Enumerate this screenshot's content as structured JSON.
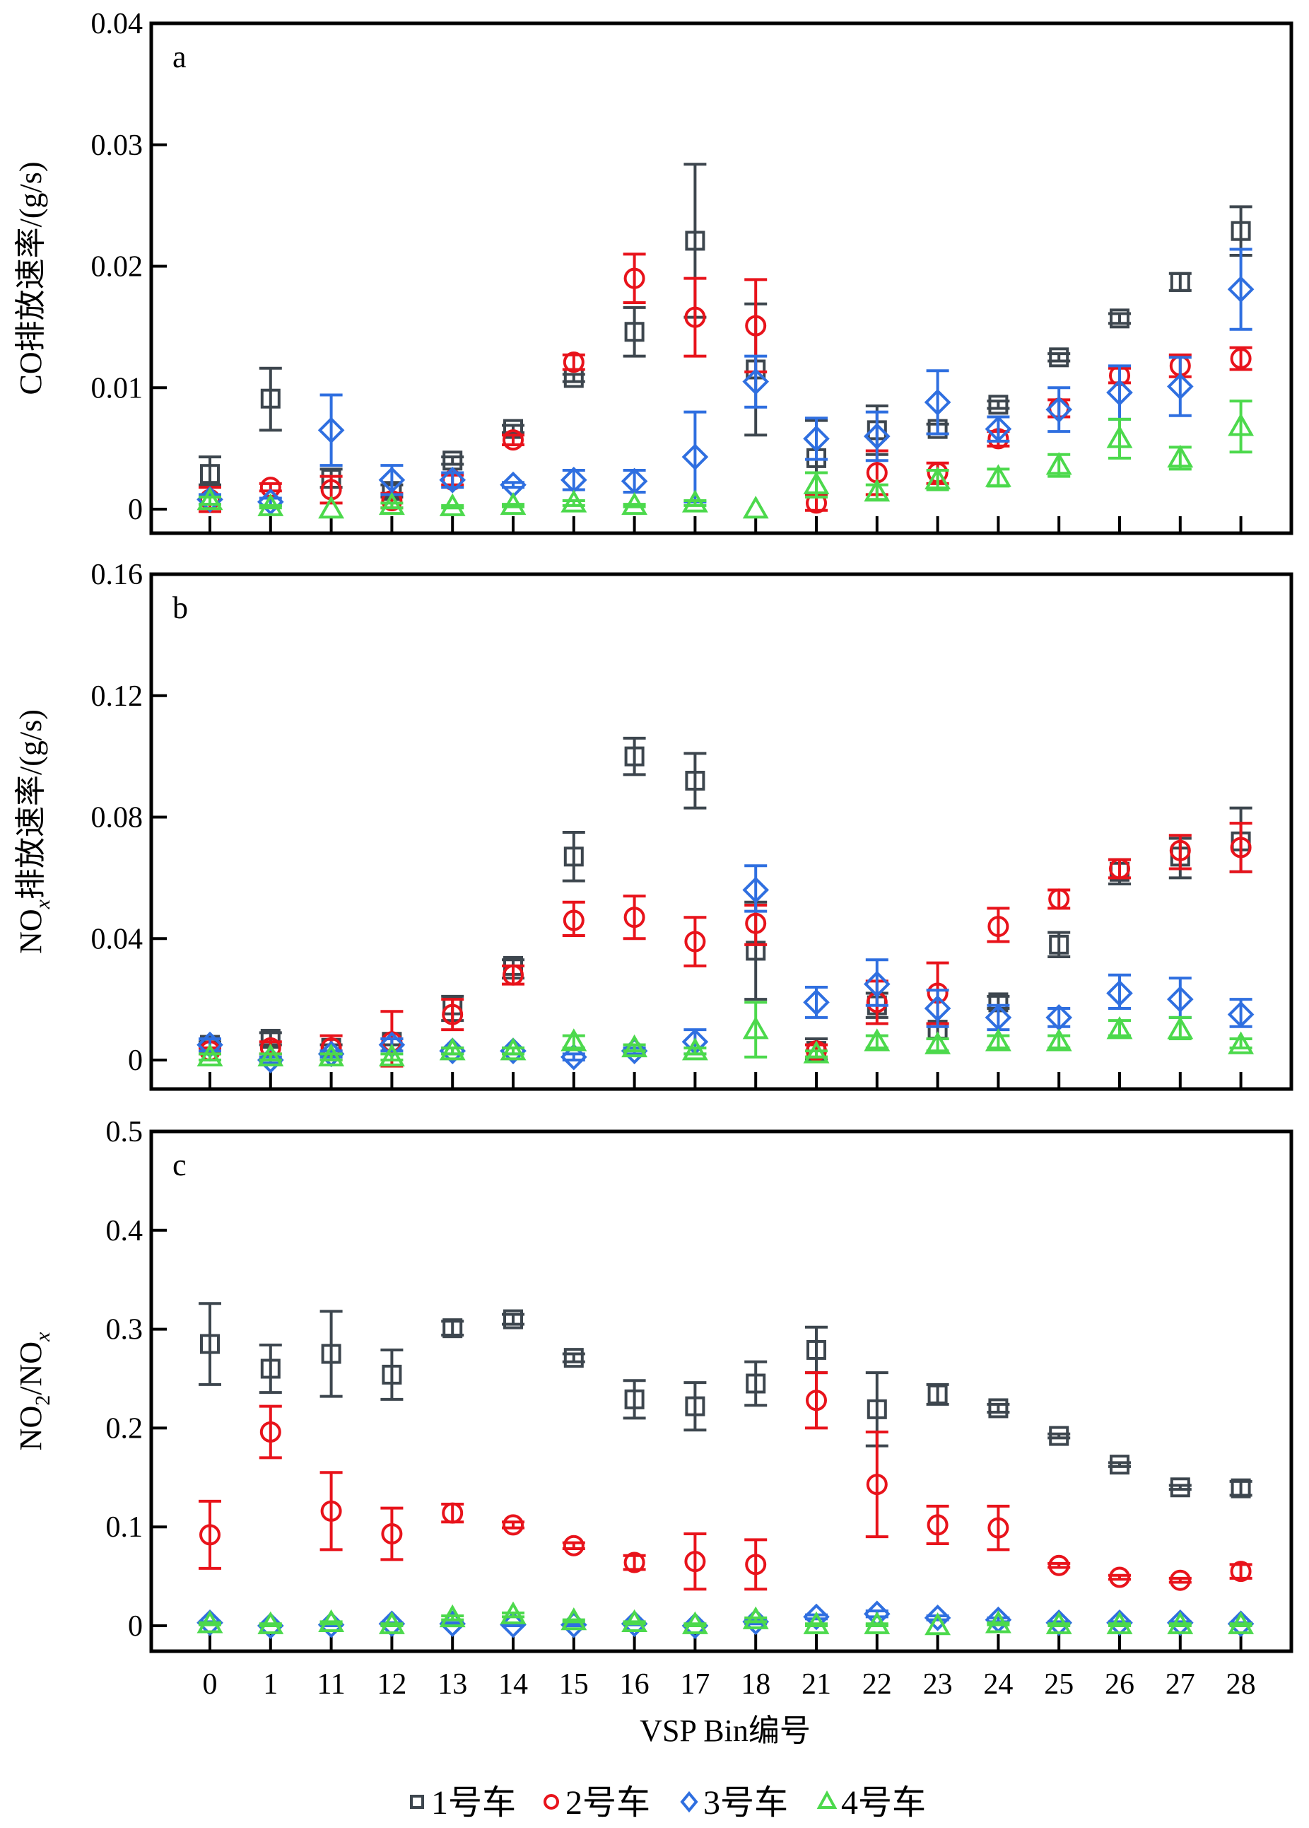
{
  "chart_data": {
    "type": "scatter",
    "figure_layout": "three vertically stacked panels sharing x-axis",
    "categories": [
      "0",
      "1",
      "11",
      "12",
      "13",
      "14",
      "15",
      "16",
      "17",
      "18",
      "21",
      "22",
      "23",
      "24",
      "25",
      "26",
      "27",
      "28"
    ],
    "xlabel": "VSP Bin编号",
    "legend": {
      "placement": "bottom-center",
      "entries": [
        {
          "name": "1号车",
          "marker": "square",
          "color": "#3d464e"
        },
        {
          "name": "2号车",
          "marker": "circle",
          "color": "#e8131b"
        },
        {
          "name": "3号车",
          "marker": "diamond",
          "color": "#2f6fe0"
        },
        {
          "name": "4号车",
          "marker": "triangle",
          "color": "#4cd94c"
        }
      ]
    },
    "panels": [
      {
        "letter": "a",
        "ylabel": "CO排放速率/(g/s)",
        "ylim": [
          0,
          0.04
        ],
        "yticks": [
          0,
          0.01,
          0.02,
          0.03,
          0.04
        ],
        "ytick_labels": [
          "0",
          "0.01",
          "0.02",
          "0.03",
          "0.04"
        ],
        "grid": false,
        "series": [
          {
            "name": "1号车",
            "values": [
              0.0029,
              0.0091,
              0.0025,
              0.0015,
              0.004,
              0.0066,
              0.0108,
              0.0146,
              0.0221,
              0.0115,
              0.0042,
              0.0065,
              0.0066,
              0.0086,
              0.0125,
              0.0157,
              0.0187,
              0.0229
            ],
            "err_low": [
              0.002,
              0.0065,
              0.0018,
              0.001,
              0.0037,
              0.0063,
              0.0105,
              0.0126,
              0.0158,
              0.0061,
              0.0012,
              0.0045,
              0.0062,
              0.0083,
              0.0122,
              0.0153,
              0.018,
              0.0209
            ],
            "err_high": [
              0.0043,
              0.0116,
              0.0033,
              0.002,
              0.0043,
              0.0069,
              0.0111,
              0.0166,
              0.0284,
              0.0169,
              0.0073,
              0.0085,
              0.007,
              0.0089,
              0.0128,
              0.0161,
              0.0194,
              0.0249
            ]
          },
          {
            "name": "2号车",
            "values": [
              0.0008,
              0.0018,
              0.0016,
              0.0007,
              0.0024,
              0.0057,
              0.0121,
              0.019,
              0.0158,
              0.0151,
              0.0005,
              0.003,
              0.003,
              0.0058,
              0.0083,
              0.011,
              0.0118,
              0.0124
            ],
            "err_low": [
              -0.0002,
              0.0015,
              0.0005,
              0.0001,
              0.002,
              0.0053,
              0.0115,
              0.017,
              0.0126,
              0.0113,
              -0.0001,
              0.0012,
              0.0021,
              0.0052,
              0.0076,
              0.0104,
              0.0109,
              0.0115
            ],
            "err_high": [
              0.0018,
              0.0021,
              0.0027,
              0.0013,
              0.0028,
              0.0061,
              0.0127,
              0.021,
              0.019,
              0.0189,
              0.0011,
              0.0048,
              0.0038,
              0.0064,
              0.009,
              0.0116,
              0.0127,
              0.0133
            ]
          },
          {
            "name": "3号车",
            "values": [
              0.0008,
              0.0006,
              0.0065,
              0.0024,
              0.0024,
              0.002,
              0.0024,
              0.0023,
              0.0043,
              0.0105,
              0.0058,
              0.006,
              0.0088,
              0.0066,
              0.0082,
              0.0096,
              0.0101,
              0.0181
            ],
            "err_low": [
              0.0004,
              0.0003,
              0.0036,
              0.0012,
              0.0018,
              0.0018,
              0.0016,
              0.0014,
              0.0006,
              0.0084,
              0.0041,
              0.004,
              0.0062,
              0.0056,
              0.0064,
              0.0074,
              0.0077,
              0.0148
            ],
            "err_high": [
              0.0012,
              0.0009,
              0.0094,
              0.0036,
              0.003,
              0.0022,
              0.0032,
              0.0032,
              0.008,
              0.0126,
              0.0075,
              0.008,
              0.0114,
              0.0076,
              0.01,
              0.0118,
              0.0125,
              0.0214
            ]
          },
          {
            "name": "4号车",
            "values": [
              0.0007,
              0.0002,
              0.0,
              0.0003,
              0.0002,
              0.0003,
              0.0005,
              0.0003,
              0.0005,
              0.0,
              0.002,
              0.0014,
              0.0024,
              0.0026,
              0.0036,
              0.0058,
              0.0042,
              0.0068
            ],
            "err_low": [
              0.0004,
              0.0001,
              0.0,
              0.0001,
              0.0001,
              0.0002,
              0.0003,
              0.0002,
              0.0003,
              0.0,
              0.001,
              0.0008,
              0.0016,
              0.0019,
              0.0027,
              0.0042,
              0.0033,
              0.0047
            ],
            "err_high": [
              0.001,
              0.0003,
              0.0001,
              0.0005,
              0.0003,
              0.0004,
              0.0007,
              0.0004,
              0.0007,
              0.0001,
              0.003,
              0.002,
              0.0032,
              0.0033,
              0.0045,
              0.0074,
              0.0051,
              0.0089
            ]
          }
        ]
      },
      {
        "letter": "b",
        "ylabel": "NOx排放速率/(g/s)",
        "ylabel_main": "NO",
        "ylabel_sub": "x",
        "ylabel_rest": "排放速率/(g/s)",
        "ylim": [
          0,
          0.16
        ],
        "yticks": [
          0,
          0.04,
          0.08,
          0.12,
          0.16
        ],
        "ytick_labels": [
          "0",
          "0.04",
          "0.08",
          "0.12",
          "0.16"
        ],
        "grid": false,
        "series": [
          {
            "name": "1号车",
            "values": [
              0.005,
              0.007,
              0.004,
              0.006,
              0.018,
              0.031,
              0.067,
              0.1,
              0.092,
              0.036,
              0.003,
              0.018,
              0.01,
              0.019,
              0.038,
              0.062,
              0.067,
              0.072
            ],
            "err_low": [
              0.004,
              0.005,
              0.003,
              0.005,
              0.013,
              0.027,
              0.059,
              0.094,
              0.083,
              0.02,
              0.0,
              0.014,
              0.007,
              0.017,
              0.034,
              0.058,
              0.06,
              0.062
            ],
            "err_high": [
              0.006,
              0.009,
              0.005,
              0.007,
              0.021,
              0.033,
              0.075,
              0.106,
              0.101,
              0.052,
              0.007,
              0.022,
              0.012,
              0.021,
              0.042,
              0.066,
              0.073,
              0.083
            ]
          },
          {
            "name": "2号车",
            "values": [
              0.003,
              0.004,
              0.004,
              0.006,
              0.015,
              0.028,
              0.046,
              0.047,
              0.039,
              0.045,
              0.003,
              0.019,
              0.022,
              0.044,
              0.053,
              0.063,
              0.069,
              0.07
            ],
            "err_low": [
              0.002,
              0.002,
              0.0,
              -0.002,
              0.01,
              0.025,
              0.041,
              0.04,
              0.031,
              0.038,
              0.001,
              0.012,
              0.012,
              0.039,
              0.05,
              0.06,
              0.063,
              0.062
            ],
            "err_high": [
              0.004,
              0.006,
              0.008,
              0.016,
              0.02,
              0.031,
              0.052,
              0.054,
              0.047,
              0.051,
              0.005,
              0.026,
              0.032,
              0.05,
              0.056,
              0.066,
              0.074,
              0.078
            ]
          },
          {
            "name": "3号车",
            "values": [
              0.005,
              0.0,
              0.002,
              0.005,
              0.003,
              0.003,
              0.001,
              0.003,
              0.006,
              0.056,
              0.019,
              0.025,
              0.017,
              0.014,
              0.014,
              0.022,
              0.02,
              0.015
            ],
            "err_low": [
              0.003,
              -0.001,
              0.001,
              0.003,
              0.002,
              0.002,
              0.0,
              0.002,
              0.002,
              0.049,
              0.014,
              0.018,
              0.011,
              0.01,
              0.011,
              0.017,
              0.014,
              0.011
            ],
            "err_high": [
              0.007,
              0.001,
              0.003,
              0.007,
              0.004,
              0.004,
              0.002,
              0.004,
              0.01,
              0.064,
              0.024,
              0.033,
              0.023,
              0.018,
              0.017,
              0.028,
              0.027,
              0.02
            ]
          },
          {
            "name": "4号车",
            "values": [
              0.001,
              0.001,
              0.001,
              0.001,
              0.003,
              0.003,
              0.006,
              0.004,
              0.003,
              0.01,
              0.002,
              0.006,
              0.005,
              0.006,
              0.006,
              0.01,
              0.01,
              0.005
            ],
            "err_low": [
              0.0,
              0.0,
              0.0,
              0.0,
              0.002,
              0.002,
              0.004,
              0.003,
              0.002,
              0.001,
              0.001,
              0.004,
              0.003,
              0.004,
              0.004,
              0.008,
              0.007,
              0.004
            ],
            "err_high": [
              0.002,
              0.002,
              0.002,
              0.002,
              0.004,
              0.004,
              0.008,
              0.005,
              0.004,
              0.019,
              0.003,
              0.008,
              0.007,
              0.008,
              0.008,
              0.013,
              0.014,
              0.007
            ]
          }
        ]
      },
      {
        "letter": "c",
        "ylabel": "NO2/NOx",
        "ylabel_parts": [
          "NO",
          "2",
          "/NO",
          "x"
        ],
        "ylim": [
          0,
          0.5
        ],
        "yticks": [
          0,
          0.1,
          0.2,
          0.3,
          0.4,
          0.5
        ],
        "ytick_labels": [
          "0",
          "0.1",
          "0.2",
          "0.3",
          "0.4",
          "0.5"
        ],
        "grid": false,
        "series": [
          {
            "name": "1号车",
            "values": [
              0.285,
              0.26,
              0.275,
              0.254,
              0.301,
              0.31,
              0.271,
              0.229,
              0.222,
              0.245,
              0.279,
              0.219,
              0.234,
              0.22,
              0.192,
              0.163,
              0.14,
              0.139
            ],
            "err_low": [
              0.244,
              0.236,
              0.232,
              0.229,
              0.294,
              0.305,
              0.267,
              0.21,
              0.198,
              0.223,
              0.256,
              0.182,
              0.224,
              0.216,
              0.19,
              0.161,
              0.138,
              0.132
            ],
            "err_high": [
              0.326,
              0.284,
              0.318,
              0.279,
              0.308,
              0.315,
              0.275,
              0.248,
              0.246,
              0.267,
              0.302,
              0.256,
              0.244,
              0.224,
              0.194,
              0.165,
              0.142,
              0.146
            ]
          },
          {
            "name": "2号车",
            "values": [
              0.092,
              0.196,
              0.116,
              0.093,
              0.114,
              0.102,
              0.081,
              0.064,
              0.065,
              0.062,
              0.228,
              0.143,
              0.102,
              0.099,
              0.061,
              0.049,
              0.046,
              0.055
            ],
            "err_low": [
              0.058,
              0.17,
              0.077,
              0.067,
              0.105,
              0.099,
              0.078,
              0.057,
              0.037,
              0.037,
              0.2,
              0.09,
              0.083,
              0.077,
              0.059,
              0.047,
              0.044,
              0.048
            ],
            "err_high": [
              0.126,
              0.222,
              0.155,
              0.119,
              0.123,
              0.105,
              0.084,
              0.071,
              0.093,
              0.087,
              0.256,
              0.196,
              0.121,
              0.121,
              0.063,
              0.051,
              0.048,
              0.062
            ]
          },
          {
            "name": "3号车",
            "values": [
              0.003,
              0.0,
              0.001,
              0.002,
              0.002,
              0.001,
              0.001,
              0.002,
              0.0,
              0.004,
              0.009,
              0.012,
              0.008,
              0.006,
              0.003,
              0.003,
              0.003,
              0.002
            ],
            "err_low": [
              0.002,
              0.0,
              0.0,
              0.001,
              0.001,
              0.0,
              0.0,
              0.001,
              0.0,
              0.002,
              0.007,
              0.009,
              0.006,
              0.004,
              0.002,
              0.002,
              0.002,
              0.001
            ],
            "err_high": [
              0.004,
              0.001,
              0.002,
              0.003,
              0.003,
              0.002,
              0.002,
              0.003,
              0.001,
              0.006,
              0.011,
              0.015,
              0.01,
              0.008,
              0.004,
              0.004,
              0.004,
              0.003
            ]
          },
          {
            "name": "4号车",
            "values": [
              0.002,
              0.001,
              0.003,
              0.001,
              0.008,
              0.011,
              0.005,
              0.003,
              0.001,
              0.006,
              0.001,
              0.001,
              0.0,
              0.002,
              0.001,
              0.001,
              0.001,
              0.001
            ],
            "err_low": [
              0.001,
              0.0,
              0.002,
              0.0,
              0.006,
              0.009,
              0.004,
              0.002,
              0.0,
              0.004,
              0.0,
              0.0,
              0.0,
              0.001,
              0.0,
              0.0,
              0.0,
              0.0
            ],
            "err_high": [
              0.003,
              0.002,
              0.004,
              0.002,
              0.01,
              0.013,
              0.006,
              0.004,
              0.002,
              0.008,
              0.002,
              0.002,
              0.001,
              0.003,
              0.002,
              0.002,
              0.002,
              0.002
            ]
          }
        ]
      }
    ]
  }
}
